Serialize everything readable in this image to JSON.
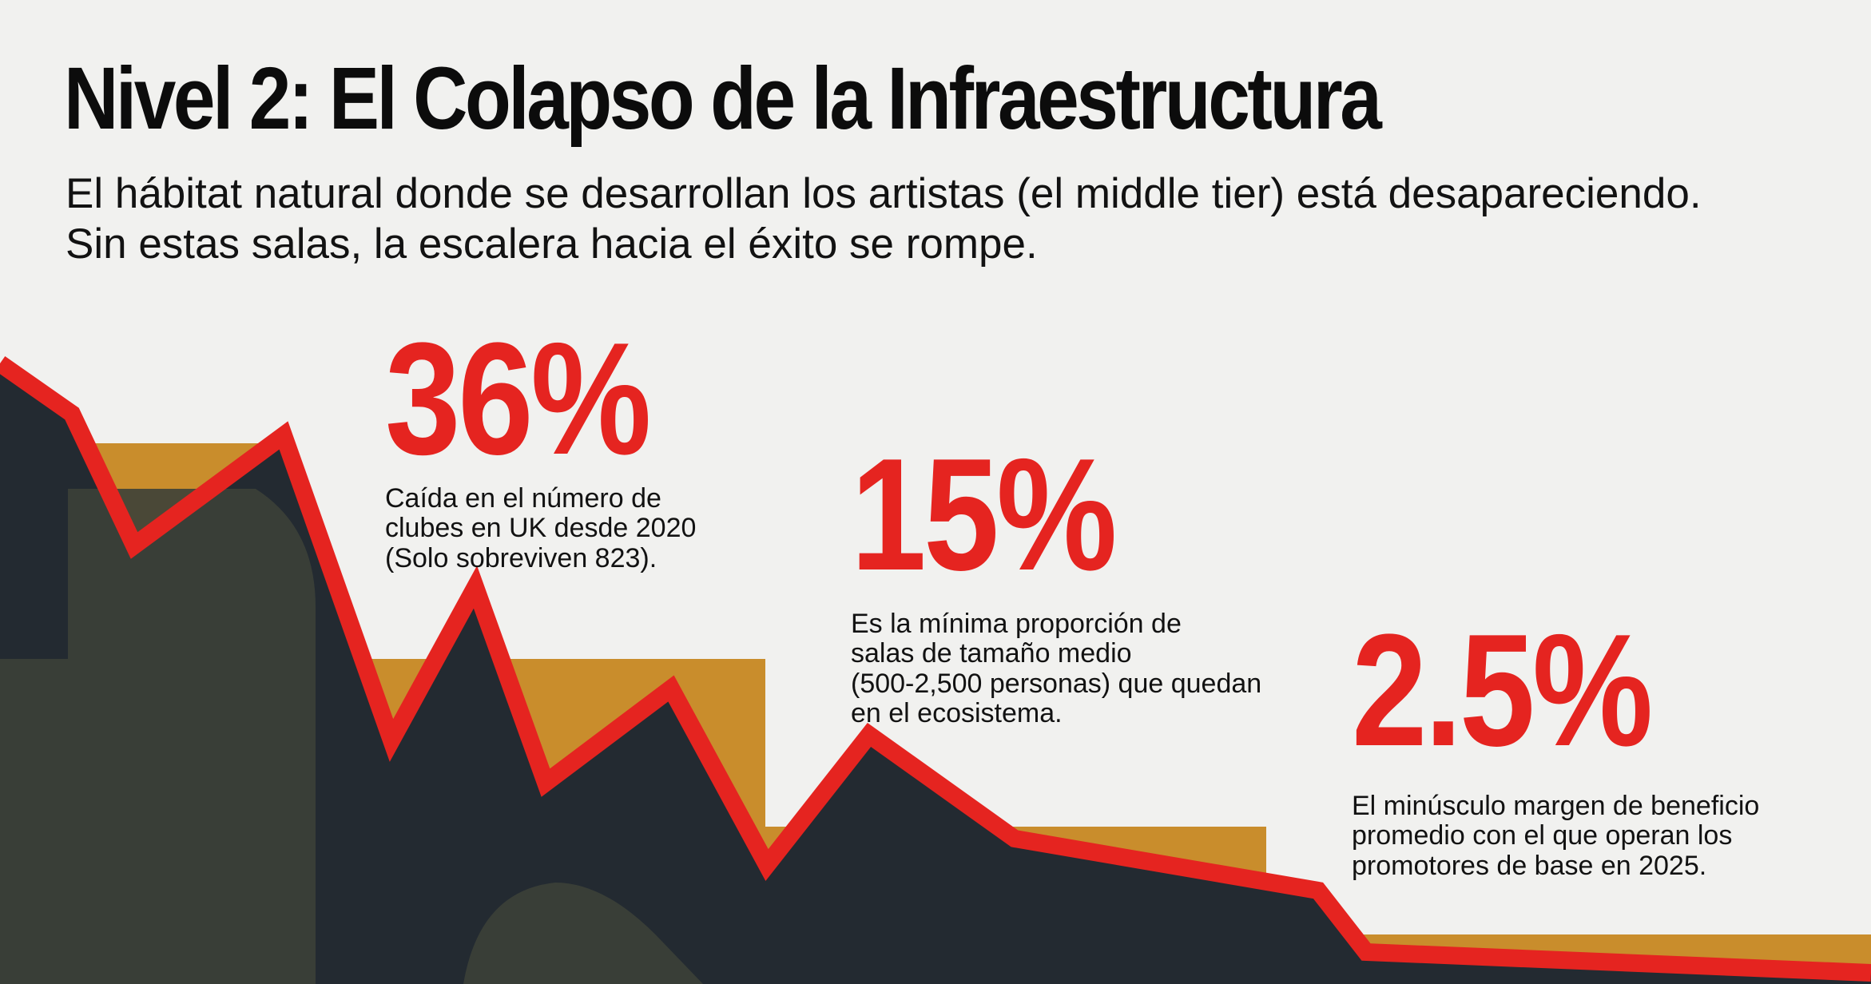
{
  "header": {
    "title": "Nivel 2: El Colapso de la Infraestructura",
    "subtitle": "El hábitat natural donde se desarrollan los artistas (el middle tier) está desapareciendo. Sin estas salas, la escalera hacia el éxito se rompe."
  },
  "stats": [
    {
      "value": "36%",
      "description": "Caída en el número de\nclubes en UK desde 2020\n(Solo sobreviven 823)."
    },
    {
      "value": "15%",
      "description": "Es la mínima proporción de\nsalas de tamaño medio\n(500-2,500 personas) que quedan\nen el ecosistema."
    },
    {
      "value": "2.5%",
      "description": "El minúsculo margen de beneficio\npromedio con el que operan los\npromotores de base en 2025."
    }
  ],
  "colors": {
    "background": "#f1f1ef",
    "accent_red": "#e52420",
    "dark_navy": "#232a31",
    "mustard": "#c98d2c",
    "olive_shadow": "#3c4039",
    "text": "#121212"
  }
}
